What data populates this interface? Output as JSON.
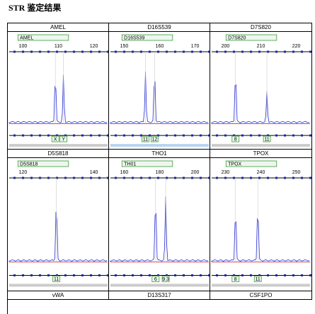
{
  "title": "STR 鉴定结果",
  "panels": [
    {
      "locus": "AMEL",
      "marker": "AMEL",
      "scale": [
        "100",
        "110",
        "120"
      ],
      "alleles": [
        "X",
        "Y"
      ]
    },
    {
      "locus": "D16S539",
      "marker": "D16S539",
      "scale": [
        "150",
        "160",
        "170"
      ],
      "alleles": [
        "11",
        "12"
      ]
    },
    {
      "locus": "D7S820",
      "marker": "D7S820",
      "scale": [
        "200",
        "210",
        "220"
      ],
      "alleles": [
        "8",
        "11"
      ]
    },
    {
      "locus": "D5S818",
      "marker": "D5S818",
      "scale": [
        "120",
        "140"
      ],
      "alleles": [
        "11"
      ]
    },
    {
      "locus": "THO1",
      "marker": "TH01",
      "scale": [
        "160",
        "180",
        "200"
      ],
      "alleles": [
        "6",
        "9.3"
      ]
    },
    {
      "locus": "TPOX",
      "marker": "TPOX",
      "scale": [
        "230",
        "240",
        "250"
      ],
      "alleles": [
        "8",
        "11"
      ]
    }
  ],
  "footer_loci": [
    "vWA",
    "D13S317",
    "CSF1PO"
  ]
}
